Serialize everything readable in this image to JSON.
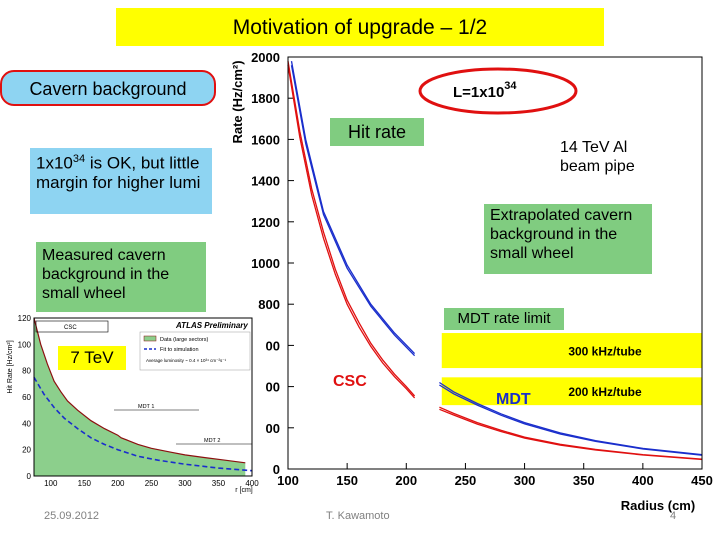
{
  "slide": {
    "title": "Motivation of upgrade – 1/2",
    "callouts": {
      "cavern_background": "Cavern background",
      "lumi_ok_base": "1x10",
      "lumi_ok_exp": "34",
      "lumi_ok_rest": " is OK, but little margin for higher lumi",
      "measured": "Measured cavern background in the small wheel",
      "hit_rate": "Hit rate",
      "beam_pipe": "14 TeV Al beam pipe",
      "extrapolated": "Extrapolated cavern background in the small wheel",
      "mdt_limit": "MDT rate limit",
      "energy_7tev": "7 TeV"
    },
    "footer": {
      "date": "25.09.2012",
      "author": "T. Kawamoto",
      "page": "4"
    }
  },
  "colors": {
    "title_bg": "#ffff00",
    "callout_green": "#80cc80",
    "callout_blue": "#8ed4f2",
    "csc": "#e01010",
    "mdt": "#1a2ecc",
    "limit_band": "#ffff00"
  },
  "chart_data": [
    {
      "type": "line",
      "xlabel": "Radius (cm)",
      "ylabel": "Rate (Hz/cm²)",
      "xlim": [
        100,
        450
      ],
      "ylim": [
        0,
        2000
      ],
      "xticks": [
        100,
        150,
        200,
        250,
        300,
        350,
        400,
        450
      ],
      "yticks": [
        0,
        200,
        400,
        600,
        800,
        1000,
        1200,
        1400,
        1600,
        1800,
        2000
      ],
      "lumi_label": "L=1x10",
      "lumi_exp": "34",
      "region_labels": {
        "csc": "CSC",
        "mdt": "MDT"
      },
      "bands": [
        {
          "label": "300 kHz/tube",
          "y_low": 490,
          "y_high": 660
        },
        {
          "label": "200 kHz/tube",
          "y_low": 310,
          "y_high": 445
        }
      ],
      "series": [
        {
          "color": "#e01010",
          "x": [
            100,
            110,
            120,
            130,
            140,
            150,
            160,
            170,
            180,
            190,
            200,
            207
          ],
          "y": [
            1980,
            1640,
            1360,
            1150,
            970,
            820,
            710,
            610,
            530,
            460,
            400,
            355
          ]
        },
        {
          "color": "#e01010",
          "x": [
            100,
            110,
            120,
            130,
            140,
            150,
            160,
            170,
            180,
            190,
            200,
            207
          ],
          "y": [
            1960,
            1610,
            1330,
            1120,
            945,
            800,
            690,
            595,
            515,
            448,
            390,
            345
          ]
        },
        {
          "color": "#1a2ecc",
          "x": [
            103,
            115,
            130,
            150,
            170,
            190,
            207
          ],
          "y": [
            1980,
            1600,
            1250,
            990,
            800,
            660,
            560
          ]
        },
        {
          "color": "#1a2ecc",
          "x": [
            103,
            115,
            130,
            150,
            170,
            190,
            207
          ],
          "y": [
            1960,
            1580,
            1235,
            975,
            790,
            650,
            550
          ]
        },
        {
          "color": "#e01010",
          "x": [
            228,
            240,
            260,
            280,
            300,
            330,
            360,
            400,
            450
          ],
          "y": [
            300,
            270,
            225,
            188,
            155,
            120,
            95,
            70,
            48
          ]
        },
        {
          "color": "#e01010",
          "x": [
            228,
            240,
            260,
            280,
            300,
            330,
            360,
            400,
            450
          ],
          "y": [
            290,
            262,
            218,
            182,
            150,
            116,
            92,
            68,
            46
          ]
        },
        {
          "color": "#1a2ecc",
          "x": [
            228,
            240,
            260,
            280,
            300,
            330,
            360,
            400,
            450
          ],
          "y": [
            420,
            375,
            318,
            268,
            225,
            175,
            138,
            100,
            70
          ]
        },
        {
          "color": "#1a2ecc",
          "x": [
            228,
            240,
            260,
            280,
            300,
            330,
            360,
            400,
            450
          ],
          "y": [
            408,
            365,
            310,
            261,
            219,
            170,
            134,
            97,
            67
          ]
        }
      ]
    },
    {
      "type": "line",
      "xlabel": "r [cm]",
      "ylabel": "Hit Rate [Hz/cm²]",
      "xlim": [
        75,
        400
      ],
      "ylim": [
        0,
        120
      ],
      "xticks": [
        100,
        150,
        200,
        250,
        300,
        350,
        400
      ],
      "yticks": [
        0,
        20,
        40,
        60,
        80,
        100,
        120
      ],
      "legend": [
        "Data (large sectors)",
        "Fit to simulation",
        "Average luminosity ~ 0.4 × 10³⁴ cm⁻²s⁻¹"
      ],
      "region_labels": [
        "CSC",
        "MDT 1",
        "MDT 2"
      ],
      "brand": "ATLAS Preliminary",
      "series": [
        {
          "name": "Data (large sectors)",
          "color": "#8c1010",
          "x": [
            75,
            85,
            95,
            105,
            115,
            125,
            140,
            160,
            180,
            200,
            205,
            215,
            230,
            250,
            280,
            300,
            330,
            360,
            390
          ],
          "y": [
            120,
            100,
            85,
            72,
            64,
            57,
            50,
            42,
            36,
            31,
            29,
            27,
            24,
            21,
            18,
            16,
            14,
            12,
            10
          ]
        },
        {
          "name": "Fit to simulation",
          "color": "#1a2ecc",
          "x": [
            75,
            90,
            105,
            120,
            140,
            160,
            180,
            200,
            230,
            260,
            300,
            350,
            400
          ],
          "y": [
            75,
            62,
            52,
            44,
            36,
            29,
            24,
            20,
            15,
            12,
            9,
            6,
            4
          ]
        }
      ]
    }
  ]
}
